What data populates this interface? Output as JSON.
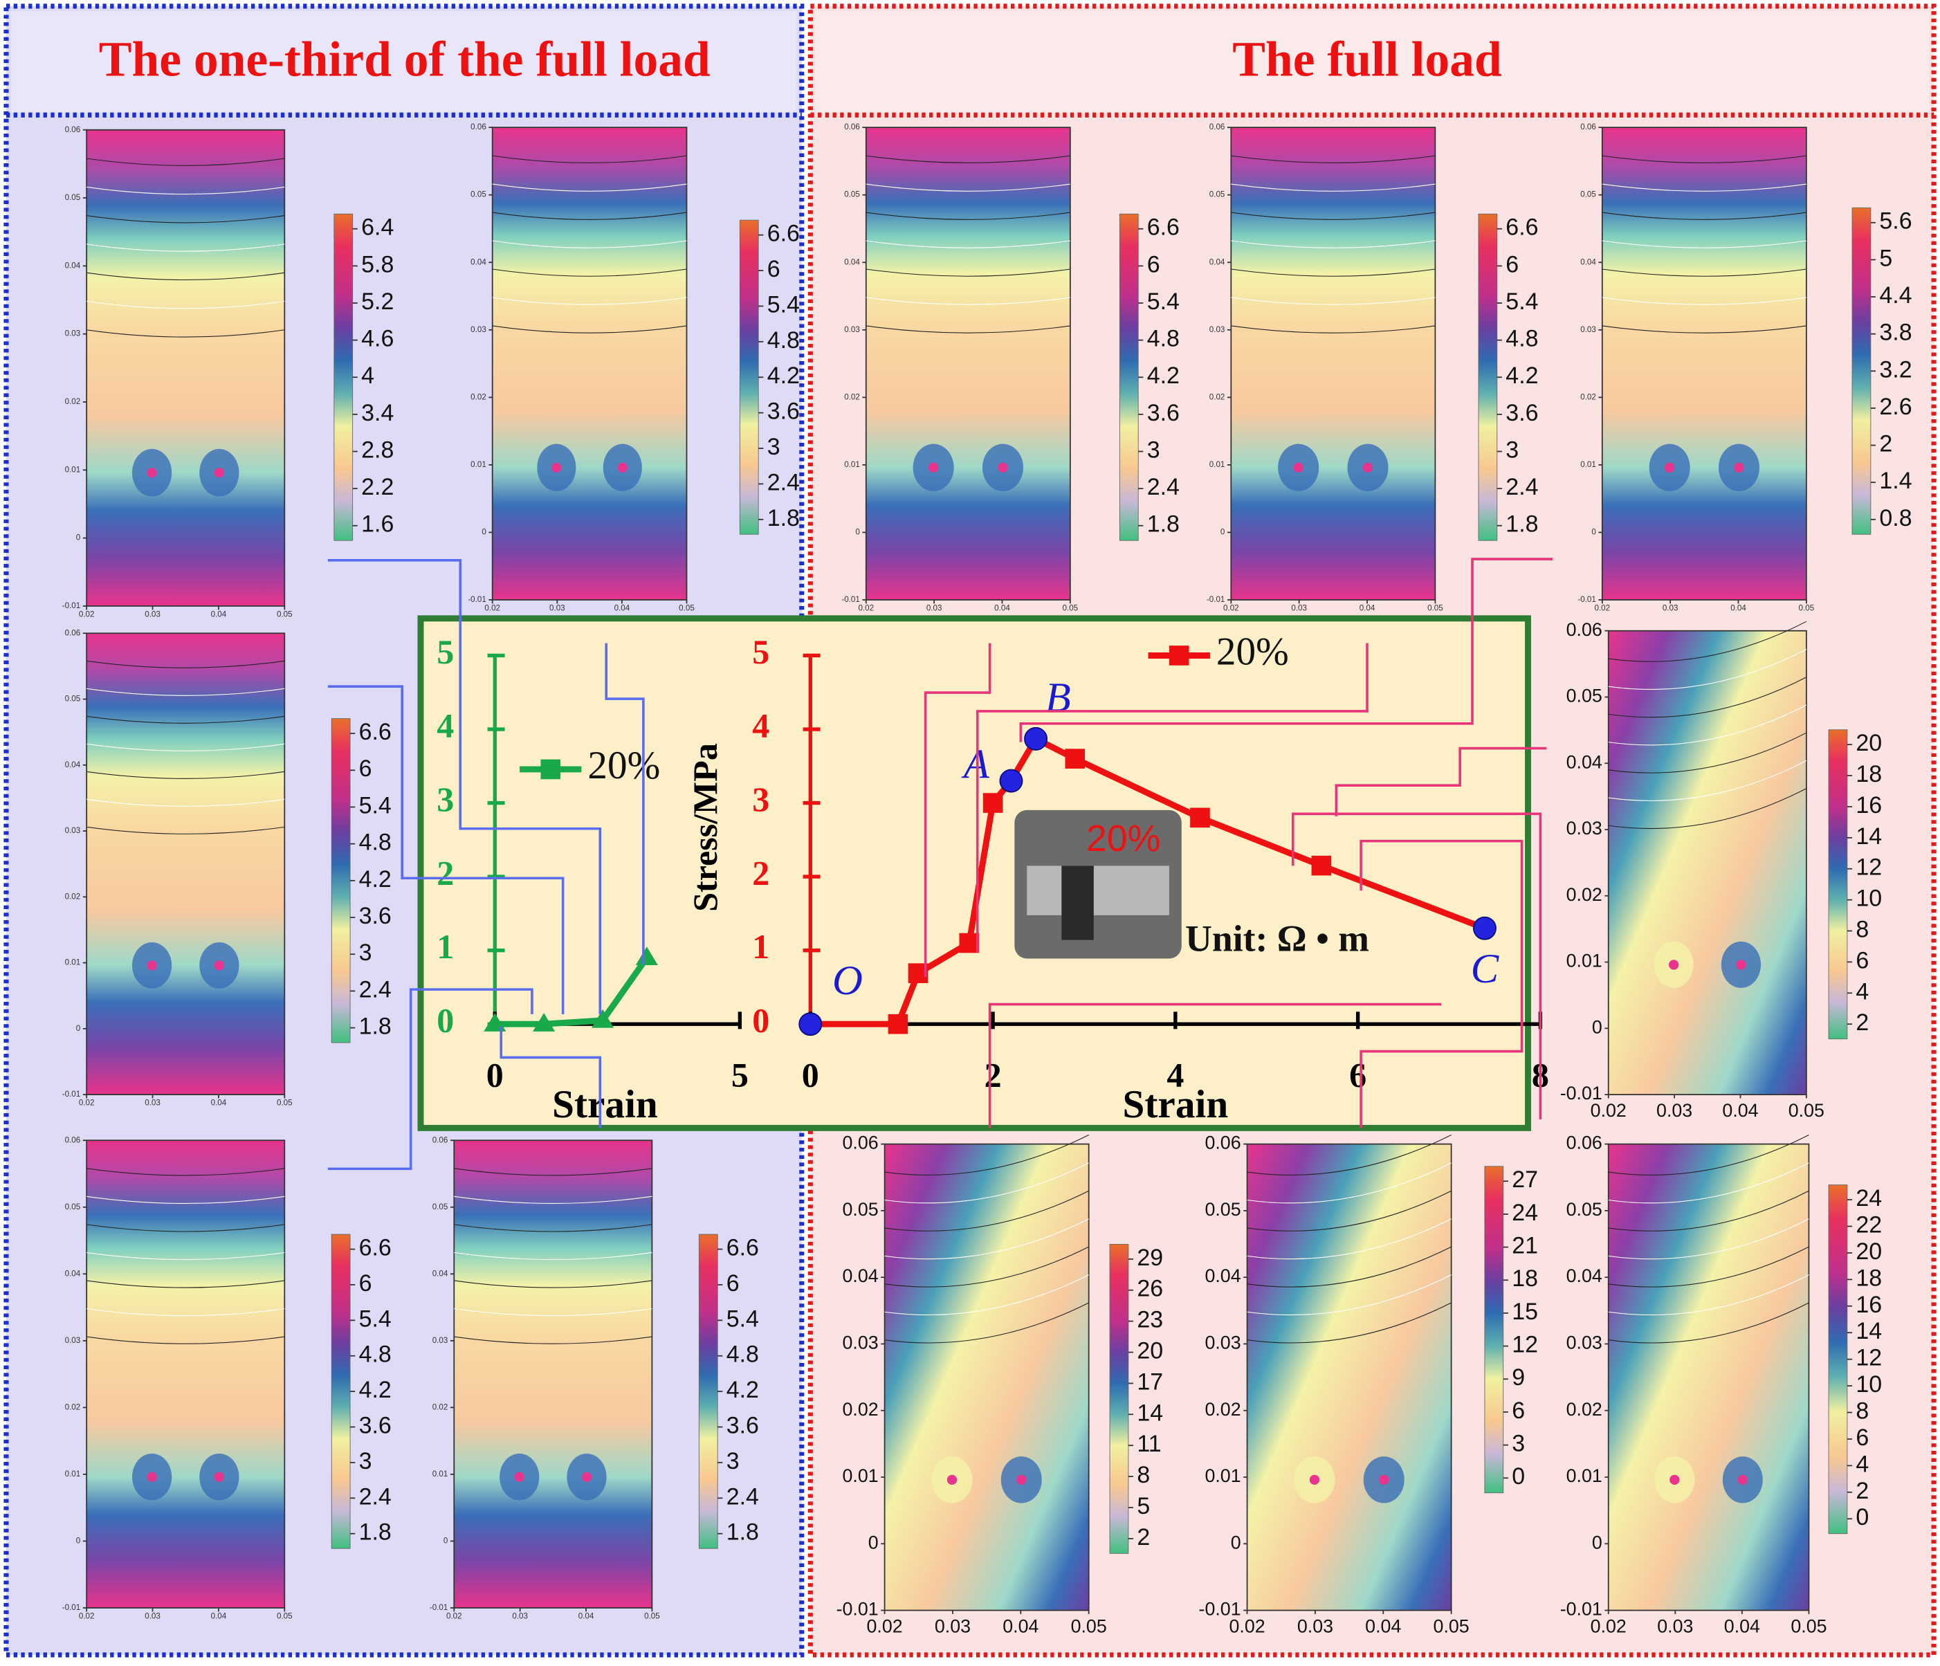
{
  "headers": [
    "The one-third of the full load",
    "The full load"
  ],
  "map_ylim": [
    -0.01,
    0.06
  ],
  "map_yticks": [
    0.06,
    0.05,
    0.04,
    0.03,
    0.02,
    0.01,
    0,
    -0.01
  ],
  "map_xlim": [
    0.02,
    0.05
  ],
  "map_xticks": [
    0.02,
    0.03,
    0.04,
    0.05
  ],
  "maps": [
    {
      "colorbar_ticks": [
        6.4,
        5.8,
        5.2,
        4.6,
        4,
        3.4,
        2.8,
        2.2,
        1.6
      ]
    },
    {
      "colorbar_ticks": [
        6.6,
        6,
        5.4,
        4.8,
        4.2,
        3.6,
        3,
        2.4,
        1.8
      ]
    },
    {
      "colorbar_ticks": [
        6.6,
        6,
        5.4,
        4.8,
        4.2,
        3.6,
        3,
        2.4,
        1.8
      ]
    },
    {
      "colorbar_ticks": [
        6.6,
        6,
        5.4,
        4.8,
        4.2,
        3.6,
        3,
        2.4,
        1.8
      ]
    },
    {
      "colorbar_ticks": [
        6.6,
        6,
        5.4,
        4.8,
        4.2,
        3.6,
        3,
        2.4,
        1.8
      ]
    },
    {
      "colorbar_ticks": [
        6.6,
        6,
        5.4,
        4.8,
        4.2,
        3.6,
        3,
        2.4,
        1.8
      ]
    },
    {
      "colorbar_ticks": [
        6.6,
        6,
        5.4,
        4.8,
        4.2,
        3.6,
        3,
        2.4,
        1.8
      ]
    },
    {
      "colorbar_ticks": [
        5.6,
        5,
        4.4,
        3.8,
        3.2,
        2.6,
        2,
        1.4,
        0.8
      ]
    },
    {
      "colorbar_ticks": [
        20,
        18,
        16,
        14,
        12,
        10,
        8,
        6,
        4,
        2
      ]
    },
    {
      "colorbar_ticks": [
        29,
        26,
        23,
        20,
        17,
        14,
        11,
        8,
        5,
        2
      ]
    },
    {
      "colorbar_ticks": [
        27,
        24,
        21,
        18,
        15,
        12,
        9,
        6,
        3,
        0
      ]
    },
    {
      "colorbar_ticks": [
        24,
        22,
        20,
        18,
        16,
        14,
        12,
        10,
        8,
        6,
        4,
        2,
        0
      ]
    }
  ],
  "photo_label": "20%",
  "unit": "Unit: Ω • m",
  "chart_data": [
    {
      "type": "line",
      "xlabel": "Strain",
      "xlim": [
        0,
        5
      ],
      "xticks": [
        0,
        5
      ],
      "ylim": [
        0,
        5
      ],
      "yticks": [
        0,
        1,
        2,
        3,
        4,
        5
      ],
      "series": [
        {
          "name": "20%",
          "color": "#19a84a",
          "marker": "triangle",
          "x": [
            0,
            1.0,
            2.2,
            3.1
          ],
          "values": [
            0,
            0,
            0.05,
            0.9
          ]
        }
      ]
    },
    {
      "type": "line",
      "xlabel": "Strain",
      "ylabel": "Stress/MPa",
      "xlim": [
        0,
        8
      ],
      "xticks": [
        0,
        2,
        4,
        6,
        8
      ],
      "ylim": [
        0,
        5
      ],
      "yticks": [
        0,
        1,
        2,
        3,
        4,
        5
      ],
      "series": [
        {
          "name": "20%",
          "color": "#ee1111",
          "marker": "square",
          "x": [
            0,
            0.96,
            1.18,
            1.74,
            2.0,
            2.2,
            2.47,
            2.9,
            4.27,
            5.6,
            7.39
          ],
          "values": [
            0,
            0,
            0.69,
            1.1,
            3.0,
            3.3,
            3.87,
            3.6,
            2.8,
            2.15,
            1.3
          ],
          "point_labels": [
            "O",
            null,
            null,
            null,
            null,
            "A",
            "B",
            null,
            null,
            null,
            "C"
          ]
        }
      ]
    }
  ]
}
